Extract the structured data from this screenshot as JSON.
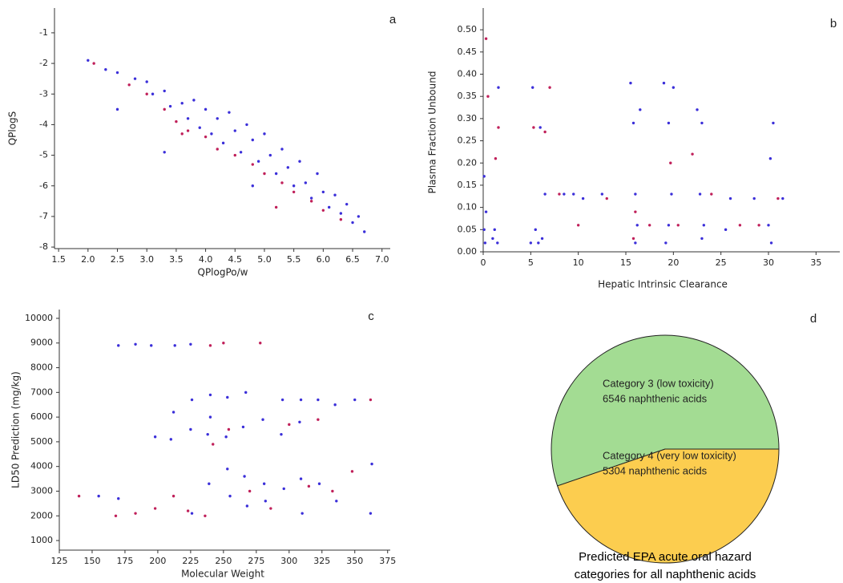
{
  "chart_data": [
    {
      "type": "scatter",
      "panel": "a",
      "x_label": "QPlogPo/w",
      "y_label": "QPlogS",
      "xlim": [
        1.43,
        7.14
      ],
      "ylim": [
        -8.05,
        -0.19
      ],
      "xticks": [
        1.5,
        {
          "value": 2,
          "label": "2.0"
        },
        2.5,
        {
          "value": 3,
          "label": "3.0"
        },
        3.5,
        {
          "value": 4,
          "label": "4.0"
        },
        4.5,
        {
          "value": 5,
          "label": "5.0"
        },
        5.5,
        {
          "value": 6,
          "label": "6.0"
        },
        6.5,
        {
          "value": 7,
          "label": "7.0"
        }
      ],
      "yticks": [
        -1,
        -2,
        -3,
        -4,
        -5,
        -6,
        -7,
        -8
      ],
      "series": [
        {
          "color": "#3b2fd9",
          "x": [
            2.0,
            2.3,
            2.5,
            2.8,
            3.0,
            3.1,
            3.3,
            3.4,
            3.6,
            3.7,
            3.8,
            3.9,
            4.0,
            4.1,
            4.2,
            4.3,
            4.4,
            4.5,
            4.6,
            4.7,
            4.8,
            4.9,
            5.0,
            5.1,
            5.2,
            5.3,
            5.4,
            5.5,
            5.6,
            5.7,
            5.8,
            5.9,
            6.0,
            6.1,
            6.2,
            6.3,
            6.4,
            6.5,
            6.6,
            6.7,
            3.3,
            2.5,
            4.8
          ],
          "values": [
            -1.9,
            -2.2,
            -2.3,
            -2.5,
            -2.6,
            -3.0,
            -2.9,
            -3.4,
            -3.3,
            -3.8,
            -3.2,
            -4.1,
            -3.5,
            -4.3,
            -3.8,
            -4.6,
            -3.6,
            -4.2,
            -4.9,
            -4.0,
            -4.5,
            -5.2,
            -4.3,
            -5.0,
            -5.6,
            -4.8,
            -5.4,
            -6.0,
            -5.2,
            -5.9,
            -6.4,
            -5.6,
            -6.2,
            -6.7,
            -6.3,
            -6.9,
            -6.6,
            -7.2,
            -7.0,
            -7.5,
            -4.9,
            -3.5,
            -6.0
          ]
        },
        {
          "color": "#c0205a",
          "x": [
            2.1,
            2.7,
            3.0,
            3.3,
            3.5,
            3.7,
            4.0,
            4.2,
            4.5,
            4.8,
            5.0,
            5.3,
            5.5,
            5.8,
            6.0,
            6.3,
            3.6,
            5.2
          ],
          "values": [
            -2.0,
            -2.7,
            -3.0,
            -3.5,
            -3.9,
            -4.2,
            -4.4,
            -4.8,
            -5.0,
            -5.3,
            -5.6,
            -5.9,
            -6.2,
            -6.5,
            -6.8,
            -7.1,
            -4.3,
            -6.7
          ]
        }
      ]
    },
    {
      "type": "scatter",
      "panel": "b",
      "x_label": "Hepatic Intrinsic Clearance",
      "y_label": "Plasma Fraction Unbound",
      "xlim": [
        0,
        37.5
      ],
      "ylim": [
        0,
        0.549
      ],
      "xticks": [
        0,
        5,
        10,
        15,
        20,
        25,
        30,
        35
      ],
      "yticks": [
        {
          "value": 0,
          "label": "0.00"
        },
        0.05,
        {
          "value": 0.1,
          "label": "0.10"
        },
        0.15,
        {
          "value": 0.2,
          "label": "0.20"
        },
        0.25,
        {
          "value": 0.3,
          "label": "0.30"
        },
        0.35,
        {
          "value": 0.4,
          "label": "0.40"
        },
        0.45,
        {
          "value": 0.5,
          "label": "0.50"
        }
      ],
      "series": [
        {
          "color": "#3b2fd9",
          "x": [
            0.1,
            0.2,
            0.3,
            0.1,
            1,
            1.2,
            1.5,
            1.6,
            5,
            5.2,
            5.5,
            5.8,
            6,
            6.2,
            6.5,
            8.5,
            9.5,
            10.5,
            12.5,
            15.5,
            15.8,
            16,
            16.2,
            16.5,
            16,
            19,
            19.5,
            19.8,
            19.5,
            19.2,
            20,
            22.5,
            23,
            22.8,
            23.2,
            23,
            25.5,
            26,
            28.5,
            30,
            30.2,
            30.5,
            30.3,
            31.5
          ],
          "values": [
            0.05,
            0.02,
            0.09,
            0.17,
            0.03,
            0.05,
            0.02,
            0.37,
            0.02,
            0.37,
            0.05,
            0.02,
            0.28,
            0.03,
            0.13,
            0.13,
            0.13,
            0.12,
            0.13,
            0.38,
            0.29,
            0.13,
            0.06,
            0.32,
            0.02,
            0.38,
            0.29,
            0.13,
            0.06,
            0.02,
            0.37,
            0.32,
            0.29,
            0.13,
            0.06,
            0.03,
            0.05,
            0.12,
            0.12,
            0.06,
            0.21,
            0.29,
            0.02,
            0.12
          ]
        },
        {
          "color": "#c0205a",
          "x": [
            0.3,
            0.5,
            1.3,
            1.6,
            5.3,
            6.5,
            7,
            8,
            10,
            13,
            15.8,
            16,
            17.5,
            19.7,
            20.5,
            22,
            24,
            27,
            29,
            31
          ],
          "values": [
            0.48,
            0.35,
            0.21,
            0.28,
            0.28,
            0.27,
            0.37,
            0.13,
            0.06,
            0.12,
            0.03,
            0.09,
            0.06,
            0.2,
            0.06,
            0.22,
            0.13,
            0.06,
            0.06,
            0.12
          ]
        }
      ]
    },
    {
      "type": "scatter",
      "panel": "c",
      "x_label": "Molecular Weight",
      "y_label": "LD50 Prediction (mg/kg)",
      "xlim": [
        125,
        377
      ],
      "ylim": [
        612,
        10356
      ],
      "xticks": [
        125,
        150,
        175,
        200,
        225,
        250,
        275,
        300,
        325,
        350,
        375
      ],
      "yticks": [
        1000,
        2000,
        3000,
        4000,
        5000,
        6000,
        7000,
        8000,
        9000,
        10000
      ],
      "series": [
        {
          "color": "#3b2fd9",
          "x": [
            155,
            170,
            170,
            183,
            195,
            198,
            210,
            212,
            213,
            225,
            225,
            226,
            226,
            238,
            239,
            240,
            240,
            252,
            253,
            253,
            255,
            265,
            266,
            267,
            268,
            280,
            281,
            282,
            294,
            295,
            296,
            308,
            309,
            309,
            310,
            322,
            323,
            335,
            336,
            350,
            362,
            363
          ],
          "values": [
            2800,
            2700,
            8900,
            8950,
            8900,
            5200,
            5100,
            6200,
            8900,
            8950,
            5500,
            6700,
            2100,
            5300,
            3300,
            6000,
            6900,
            5200,
            3900,
            6800,
            2800,
            5600,
            3600,
            7000,
            2400,
            5900,
            3300,
            2600,
            5300,
            6700,
            3100,
            5800,
            3500,
            6700,
            2100,
            6700,
            3300,
            6500,
            2600,
            6700,
            2100,
            4100
          ]
        },
        {
          "color": "#c0205a",
          "x": [
            140,
            168,
            183,
            198,
            212,
            223,
            236,
            240,
            250,
            242,
            254,
            270,
            278,
            286,
            300,
            315,
            322,
            333,
            348,
            362
          ],
          "values": [
            2800,
            2000,
            2100,
            2300,
            2800,
            2200,
            2000,
            8900,
            9000,
            4900,
            5500,
            3000,
            9000,
            2300,
            5700,
            3200,
            5900,
            3000,
            3800,
            6700
          ]
        }
      ]
    },
    {
      "type": "pie",
      "panel": "d",
      "title": [
        "Predicted EPA acute oral hazard",
        "categories for all naphthenic acids"
      ],
      "categories": [
        "Category 3 (low toxicity)",
        "Category 4 (very low toxicity)"
      ],
      "values": [
        6546,
        5304
      ],
      "value_labels": [
        "6546 naphthenic acids",
        "5304 naphthenic acids"
      ],
      "colors": [
        "#a3dc93",
        "#fccd4f"
      ]
    }
  ]
}
